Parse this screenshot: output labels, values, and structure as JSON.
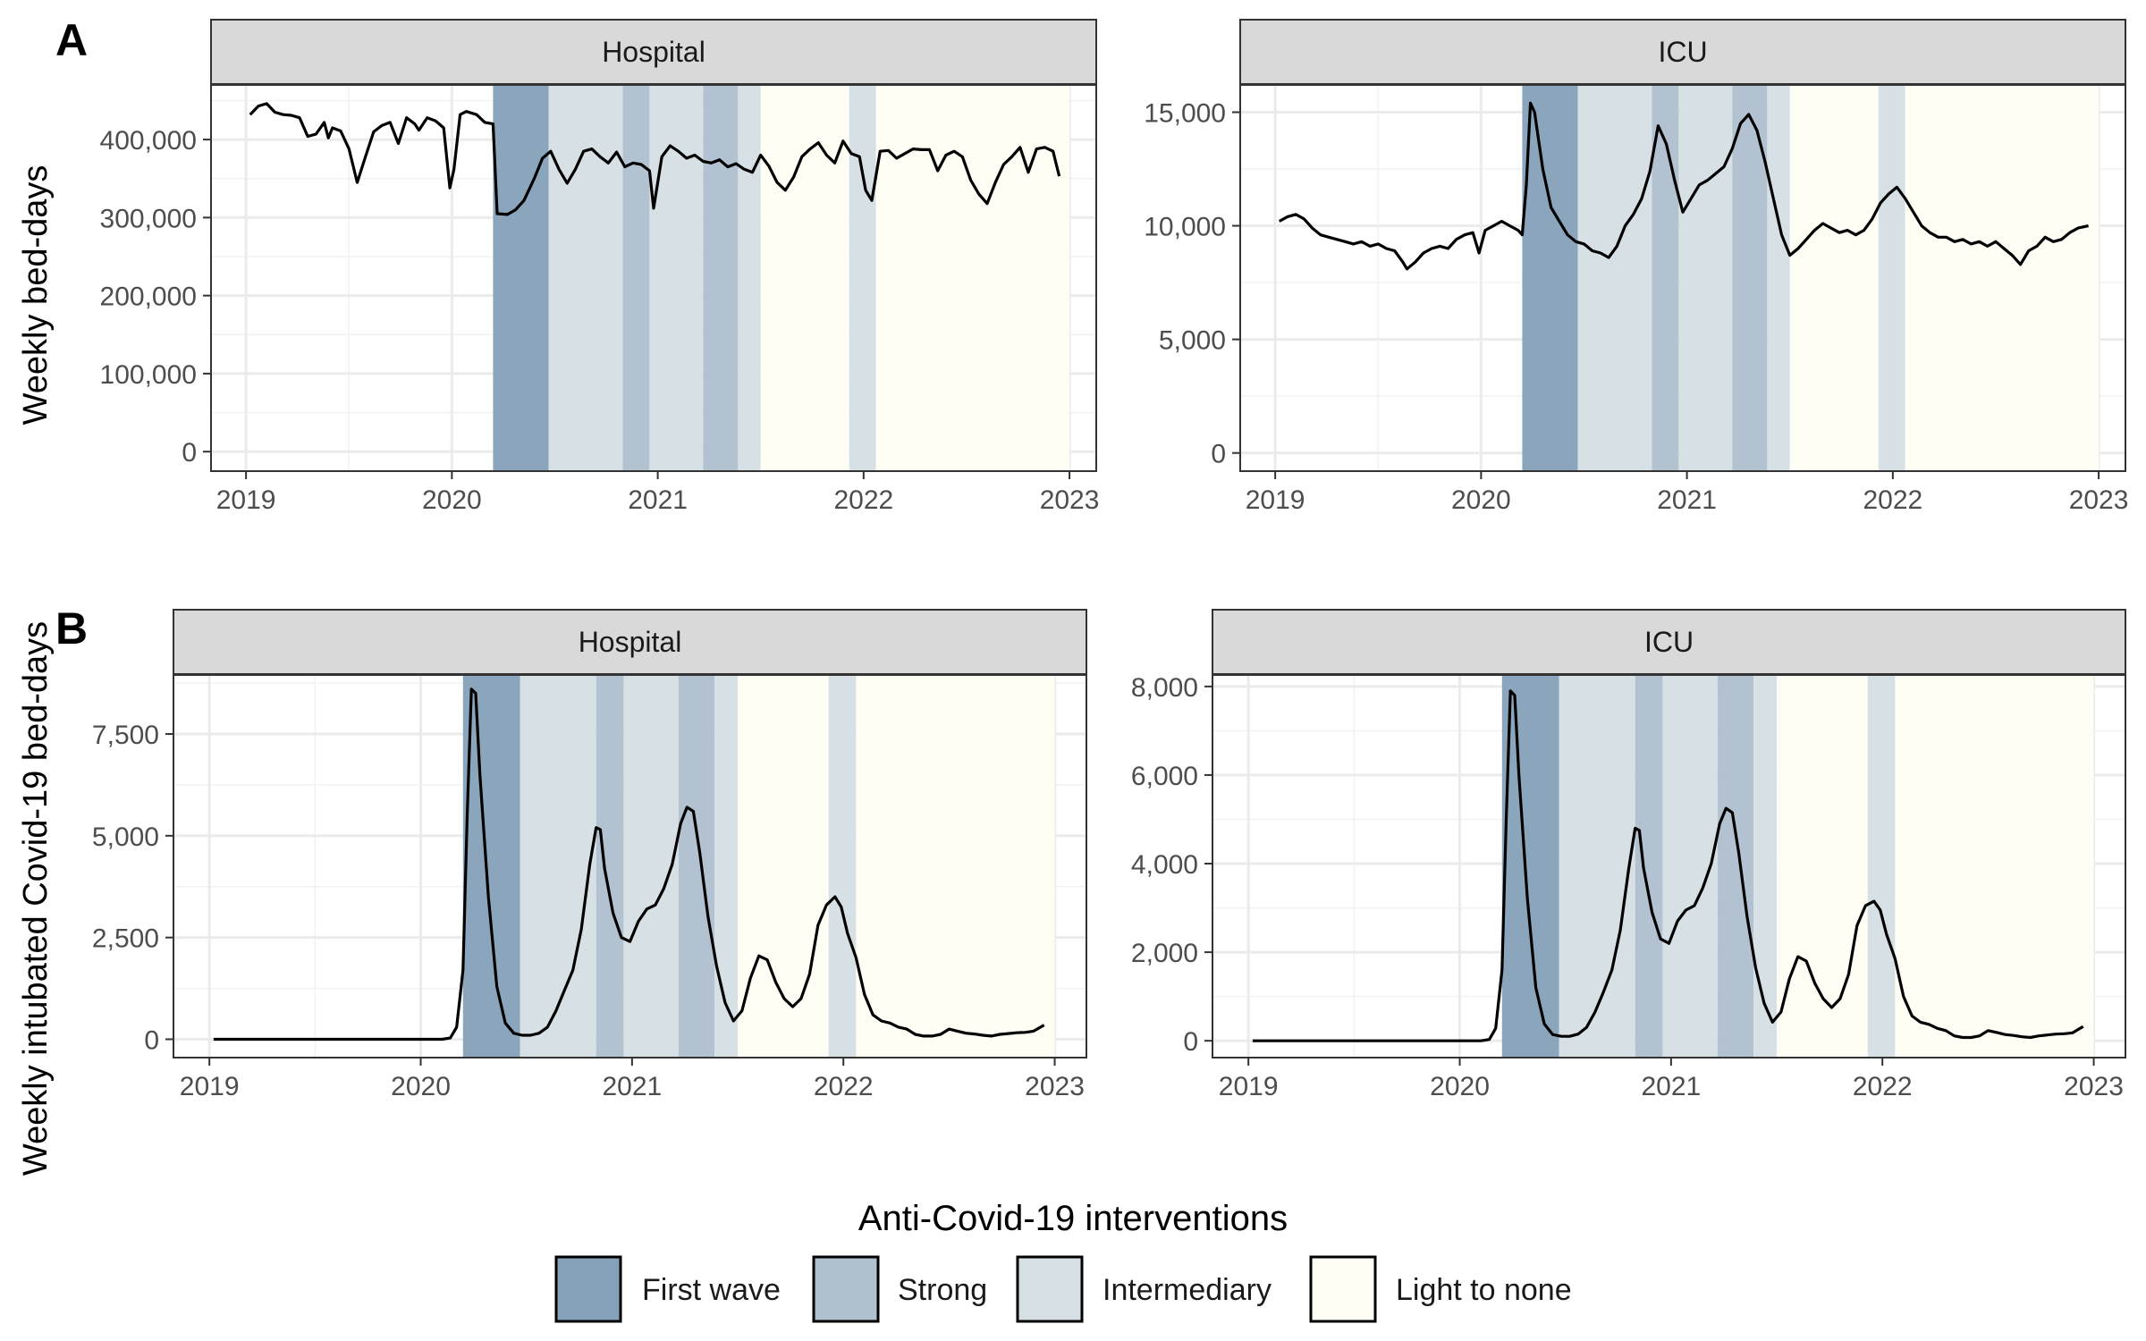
{
  "y_axis_titles": {
    "A": "Weekly bed-days",
    "B": "Weekly intubated Covid-19 bed-days"
  },
  "panel_tags": [
    "A",
    "B"
  ],
  "legend": {
    "title": "Anti-Covid-19 interventions",
    "items": [
      {
        "label": "First wave",
        "color": "#86a2ba"
      },
      {
        "label": "Strong",
        "color": "#afc0ce"
      },
      {
        "label": "Intermediary",
        "color": "#d6dfe3"
      },
      {
        "label": "Light to none",
        "color": "#fefef4"
      }
    ]
  },
  "intervention_periods": [
    {
      "type": "First wave",
      "start": 2020.2,
      "end": 2020.47
    },
    {
      "type": "Intermediary",
      "start": 2020.47,
      "end": 2020.83
    },
    {
      "type": "Strong",
      "start": 2020.83,
      "end": 2020.96
    },
    {
      "type": "Intermediary",
      "start": 2020.96,
      "end": 2021.22
    },
    {
      "type": "Strong",
      "start": 2021.22,
      "end": 2021.39
    },
    {
      "type": "Intermediary",
      "start": 2021.39,
      "end": 2021.5
    },
    {
      "type": "Light to none",
      "start": 2021.5,
      "end": 2021.93
    },
    {
      "type": "Intermediary",
      "start": 2021.93,
      "end": 2022.06
    },
    {
      "type": "Light to none",
      "start": 2022.06,
      "end": 2023.0
    }
  ],
  "chart_data": [
    {
      "type": "line",
      "panel": "A",
      "strip": "Hospital",
      "xlim": [
        2018.83,
        2023.13
      ],
      "ylim": [
        -25000,
        470000
      ],
      "x_ticks": [
        2019,
        2020,
        2021,
        2022,
        2023
      ],
      "x_tick_labels": [
        "2019",
        "2020",
        "2021",
        "2022",
        "2023"
      ],
      "y_ticks": [
        0,
        100000,
        200000,
        300000,
        400000
      ],
      "y_tick_labels": [
        "0",
        "100,000",
        "200,000",
        "300,000",
        "400,000"
      ],
      "series": [
        {
          "x": [
            2019.02,
            2019.06,
            2019.1,
            2019.14,
            2019.18,
            2019.22,
            2019.26,
            2019.3,
            2019.34,
            2019.38,
            2019.4,
            2019.42,
            2019.46,
            2019.5,
            2019.54,
            2019.58,
            2019.62,
            2019.66,
            2019.7,
            2019.74,
            2019.78,
            2019.82,
            2019.84,
            2019.88,
            2019.92,
            2019.96,
            2019.99,
            2020.01,
            2020.04,
            2020.07,
            2020.12,
            2020.16,
            2020.2,
            2020.22,
            2020.27,
            2020.31,
            2020.35,
            2020.4,
            2020.44,
            2020.48,
            2020.52,
            2020.56,
            2020.6,
            2020.64,
            2020.68,
            2020.72,
            2020.76,
            2020.8,
            2020.84,
            2020.88,
            2020.92,
            2020.96,
            2020.98,
            2021.02,
            2021.06,
            2021.1,
            2021.14,
            2021.18,
            2021.22,
            2021.26,
            2021.3,
            2021.34,
            2021.38,
            2021.42,
            2021.46,
            2021.5,
            2021.54,
            2021.58,
            2021.62,
            2021.66,
            2021.7,
            2021.74,
            2021.78,
            2021.82,
            2021.86,
            2021.9,
            2021.94,
            2021.98,
            2022.01,
            2022.04,
            2022.08,
            2022.12,
            2022.16,
            2022.2,
            2022.24,
            2022.28,
            2022.32,
            2022.36,
            2022.4,
            2022.44,
            2022.48,
            2022.52,
            2022.56,
            2022.6,
            2022.64,
            2022.68,
            2022.72,
            2022.76,
            2022.8,
            2022.84,
            2022.88,
            2022.92,
            2022.95
          ],
          "y": [
            432000,
            443000,
            446000,
            435000,
            432000,
            431000,
            428000,
            404000,
            407000,
            422000,
            402000,
            415000,
            411000,
            388000,
            345000,
            378000,
            410000,
            418000,
            422000,
            395000,
            428000,
            420000,
            412000,
            428000,
            424000,
            415000,
            338000,
            362000,
            432000,
            436000,
            432000,
            422000,
            420000,
            305000,
            304000,
            310000,
            322000,
            350000,
            376000,
            385000,
            362000,
            344000,
            362000,
            385000,
            388000,
            378000,
            370000,
            384000,
            365000,
            370000,
            368000,
            360000,
            312000,
            378000,
            392000,
            385000,
            376000,
            380000,
            372000,
            370000,
            374000,
            365000,
            369000,
            362000,
            358000,
            380000,
            366000,
            345000,
            335000,
            352000,
            378000,
            388000,
            396000,
            380000,
            370000,
            398000,
            382000,
            378000,
            335000,
            322000,
            385000,
            386000,
            376000,
            382000,
            388000,
            387000,
            387000,
            360000,
            380000,
            385000,
            378000,
            348000,
            330000,
            318000,
            345000,
            368000,
            378000,
            390000,
            358000,
            388000,
            390000,
            385000,
            353000
          ]
        }
      ]
    },
    {
      "type": "line",
      "panel": "A",
      "strip": "ICU",
      "xlim": [
        2018.83,
        2023.13
      ],
      "ylim": [
        -800,
        16200
      ],
      "x_ticks": [
        2019,
        2020,
        2021,
        2022,
        2023
      ],
      "x_tick_labels": [
        "2019",
        "2020",
        "2021",
        "2022",
        "2023"
      ],
      "y_ticks": [
        0,
        5000,
        10000,
        15000
      ],
      "y_tick_labels": [
        "0",
        "5,000",
        "10,000",
        "15,000"
      ],
      "series": [
        {
          "x": [
            2019.02,
            2019.06,
            2019.1,
            2019.14,
            2019.18,
            2019.22,
            2019.26,
            2019.3,
            2019.34,
            2019.38,
            2019.42,
            2019.46,
            2019.5,
            2019.54,
            2019.58,
            2019.62,
            2019.64,
            2019.68,
            2019.72,
            2019.76,
            2019.8,
            2019.84,
            2019.88,
            2019.92,
            2019.96,
            2019.99,
            2020.02,
            2020.06,
            2020.1,
            2020.14,
            2020.18,
            2020.2,
            2020.22,
            2020.24,
            2020.26,
            2020.3,
            2020.34,
            2020.38,
            2020.42,
            2020.46,
            2020.5,
            2020.54,
            2020.58,
            2020.62,
            2020.66,
            2020.7,
            2020.74,
            2020.78,
            2020.82,
            2020.86,
            2020.9,
            2020.94,
            2020.98,
            2021.02,
            2021.06,
            2021.1,
            2021.14,
            2021.18,
            2021.22,
            2021.26,
            2021.3,
            2021.34,
            2021.38,
            2021.42,
            2021.46,
            2021.5,
            2021.54,
            2021.58,
            2021.62,
            2021.66,
            2021.7,
            2021.74,
            2021.78,
            2021.82,
            2021.86,
            2021.9,
            2021.94,
            2021.98,
            2022.02,
            2022.06,
            2022.1,
            2022.14,
            2022.18,
            2022.22,
            2022.26,
            2022.3,
            2022.34,
            2022.38,
            2022.42,
            2022.46,
            2022.5,
            2022.54,
            2022.58,
            2022.62,
            2022.66,
            2022.7,
            2022.74,
            2022.78,
            2022.82,
            2022.86,
            2022.9,
            2022.95
          ],
          "y": [
            10200,
            10400,
            10500,
            10300,
            9900,
            9600,
            9500,
            9400,
            9300,
            9200,
            9300,
            9100,
            9200,
            9000,
            8900,
            8400,
            8100,
            8400,
            8800,
            9000,
            9100,
            9000,
            9400,
            9600,
            9700,
            8800,
            9800,
            10000,
            10200,
            10000,
            9800,
            9600,
            11800,
            15400,
            15000,
            12500,
            10800,
            10200,
            9600,
            9300,
            9200,
            8900,
            8800,
            8600,
            9100,
            10000,
            10500,
            11200,
            12400,
            14400,
            13600,
            12000,
            10600,
            11200,
            11800,
            12000,
            12300,
            12600,
            13400,
            14500,
            14900,
            14200,
            12800,
            11200,
            9600,
            8700,
            9000,
            9400,
            9800,
            10100,
            9900,
            9700,
            9800,
            9600,
            9800,
            10300,
            11000,
            11400,
            11700,
            11200,
            10600,
            10000,
            9700,
            9500,
            9500,
            9300,
            9400,
            9200,
            9300,
            9100,
            9300,
            9000,
            8700,
            8300,
            8900,
            9100,
            9500,
            9300,
            9400,
            9700,
            9900,
            10000
          ]
        }
      ]
    },
    {
      "type": "line",
      "panel": "B",
      "strip": "Hospital",
      "xlim": [
        2018.83,
        2023.15
      ],
      "ylim": [
        -450,
        8950
      ],
      "x_ticks": [
        2019,
        2020,
        2021,
        2022,
        2023
      ],
      "x_tick_labels": [
        "2019",
        "2020",
        "2021",
        "2022",
        "2023"
      ],
      "y_ticks": [
        0,
        2500,
        5000,
        7500
      ],
      "y_tick_labels": [
        "0",
        "2,500",
        "5,000",
        "7,500"
      ],
      "series": [
        {
          "x": [
            2019.02,
            2019.5,
            2020.0,
            2020.1,
            2020.14,
            2020.17,
            2020.2,
            2020.22,
            2020.24,
            2020.26,
            2020.28,
            2020.32,
            2020.36,
            2020.4,
            2020.44,
            2020.48,
            2020.52,
            2020.56,
            2020.6,
            2020.64,
            2020.68,
            2020.72,
            2020.76,
            2020.8,
            2020.83,
            2020.85,
            2020.87,
            2020.91,
            2020.95,
            2020.99,
            2021.03,
            2021.07,
            2021.11,
            2021.15,
            2021.19,
            2021.23,
            2021.26,
            2021.29,
            2021.32,
            2021.36,
            2021.4,
            2021.44,
            2021.48,
            2021.52,
            2021.56,
            2021.6,
            2021.64,
            2021.68,
            2021.72,
            2021.76,
            2021.8,
            2021.84,
            2021.88,
            2021.92,
            2021.96,
            2021.99,
            2022.02,
            2022.06,
            2022.1,
            2022.14,
            2022.18,
            2022.22,
            2022.26,
            2022.3,
            2022.34,
            2022.38,
            2022.42,
            2022.46,
            2022.5,
            2022.54,
            2022.58,
            2022.62,
            2022.66,
            2022.7,
            2022.74,
            2022.78,
            2022.82,
            2022.86,
            2022.9,
            2022.95
          ],
          "y": [
            0,
            0,
            0,
            0,
            30,
            300,
            1700,
            5500,
            8600,
            8500,
            6500,
            3500,
            1300,
            400,
            150,
            100,
            100,
            150,
            300,
            700,
            1200,
            1700,
            2700,
            4300,
            5200,
            5150,
            4200,
            3100,
            2500,
            2400,
            2900,
            3200,
            3300,
            3700,
            4300,
            5300,
            5700,
            5600,
            4600,
            3000,
            1800,
            900,
            450,
            700,
            1500,
            2050,
            1950,
            1400,
            1000,
            800,
            1000,
            1600,
            2800,
            3300,
            3500,
            3250,
            2600,
            2000,
            1100,
            600,
            450,
            400,
            300,
            250,
            120,
            80,
            80,
            120,
            250,
            200,
            150,
            130,
            100,
            80,
            120,
            140,
            160,
            170,
            200,
            350
          ]
        }
      ]
    },
    {
      "type": "line",
      "panel": "B",
      "strip": "ICU",
      "xlim": [
        2018.83,
        2023.15
      ],
      "ylim": [
        -380,
        8260
      ],
      "x_ticks": [
        2019,
        2020,
        2021,
        2022,
        2023
      ],
      "x_tick_labels": [
        "2019",
        "2020",
        "2021",
        "2022",
        "2023"
      ],
      "y_ticks": [
        0,
        2000,
        4000,
        6000,
        8000
      ],
      "y_tick_labels": [
        "0",
        "2,000",
        "4,000",
        "6,000",
        "8,000"
      ],
      "series": [
        {
          "x": [
            2019.02,
            2019.5,
            2020.0,
            2020.1,
            2020.14,
            2020.17,
            2020.2,
            2020.22,
            2020.24,
            2020.26,
            2020.28,
            2020.32,
            2020.36,
            2020.4,
            2020.44,
            2020.48,
            2020.52,
            2020.56,
            2020.6,
            2020.64,
            2020.68,
            2020.72,
            2020.76,
            2020.8,
            2020.83,
            2020.85,
            2020.87,
            2020.91,
            2020.95,
            2020.99,
            2021.03,
            2021.07,
            2021.11,
            2021.15,
            2021.19,
            2021.23,
            2021.26,
            2021.29,
            2021.32,
            2021.36,
            2021.4,
            2021.44,
            2021.48,
            2021.52,
            2021.56,
            2021.6,
            2021.64,
            2021.68,
            2021.72,
            2021.76,
            2021.8,
            2021.84,
            2021.88,
            2021.92,
            2021.96,
            2021.99,
            2022.02,
            2022.06,
            2022.1,
            2022.14,
            2022.18,
            2022.22,
            2022.26,
            2022.3,
            2022.34,
            2022.38,
            2022.42,
            2022.46,
            2022.5,
            2022.54,
            2022.58,
            2022.62,
            2022.66,
            2022.7,
            2022.74,
            2022.78,
            2022.82,
            2022.86,
            2022.9,
            2022.95
          ],
          "y": [
            0,
            0,
            0,
            0,
            30,
            280,
            1600,
            5000,
            7900,
            7800,
            6000,
            3200,
            1200,
            380,
            140,
            100,
            100,
            150,
            300,
            650,
            1100,
            1600,
            2500,
            3900,
            4800,
            4750,
            3900,
            2900,
            2300,
            2200,
            2700,
            2950,
            3050,
            3450,
            4000,
            4900,
            5250,
            5150,
            4250,
            2800,
            1650,
            850,
            420,
            650,
            1400,
            1900,
            1800,
            1300,
            950,
            750,
            950,
            1500,
            2600,
            3050,
            3150,
            2950,
            2400,
            1850,
            1000,
            560,
            420,
            370,
            280,
            230,
            110,
            75,
            75,
            110,
            230,
            190,
            140,
            120,
            90,
            75,
            110,
            130,
            150,
            160,
            180,
            320
          ]
        }
      ]
    }
  ]
}
